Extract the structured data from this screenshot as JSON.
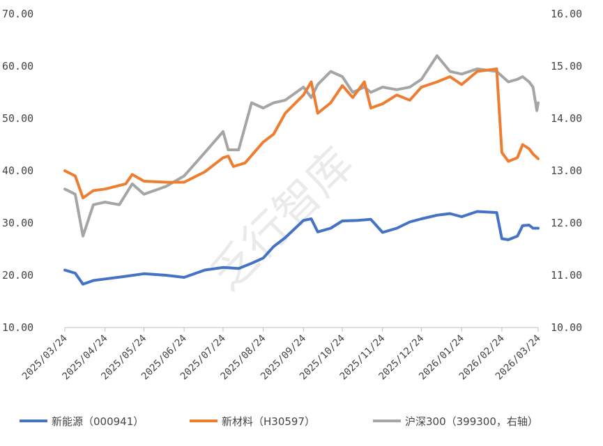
{
  "chart_data": {
    "type": "line",
    "watermark": "乏行智库",
    "x_ticks": [
      "2025/03/24",
      "2025/04/24",
      "2025/05/24",
      "2025/06/24",
      "2025/07/24",
      "2025/08/24",
      "2025/09/24",
      "2025/10/24",
      "2025/11/24",
      "2025/12/24",
      "2026/01/24",
      "2026/02/24",
      "2026/03/24"
    ],
    "y_left": {
      "range": [
        10,
        70
      ],
      "ticks": [
        "10.00",
        "20.00",
        "30.00",
        "40.00",
        "50.00",
        "60.00",
        "70.00"
      ]
    },
    "y_right": {
      "range": [
        10,
        16
      ],
      "ticks": [
        "10.00",
        "11.00",
        "12.00",
        "13.00",
        "14.00",
        "15.00",
        "16.00"
      ]
    },
    "legend_position": "bottom",
    "series": [
      {
        "name": "新能源（000941）",
        "axis": "left",
        "color": "#4472C4",
        "points": [
          [
            "2025/03/24",
            21.0
          ],
          [
            "2025/04/01",
            20.4
          ],
          [
            "2025/04/07",
            18.3
          ],
          [
            "2025/04/15",
            19.0
          ],
          [
            "2025/04/24",
            19.3
          ],
          [
            "2025/05/10",
            19.8
          ],
          [
            "2025/05/24",
            20.3
          ],
          [
            "2025/06/10",
            20.0
          ],
          [
            "2025/06/24",
            19.6
          ],
          [
            "2025/07/10",
            21.0
          ],
          [
            "2025/07/24",
            21.5
          ],
          [
            "2025/08/05",
            21.3
          ],
          [
            "2025/08/15",
            22.3
          ],
          [
            "2025/08/24",
            23.3
          ],
          [
            "2025/09/01",
            25.5
          ],
          [
            "2025/09/10",
            27.2
          ],
          [
            "2025/09/24",
            30.5
          ],
          [
            "2025/09/30",
            30.8
          ],
          [
            "2025/10/05",
            28.3
          ],
          [
            "2025/10/15",
            29.0
          ],
          [
            "2025/10/24",
            30.4
          ],
          [
            "2025/11/05",
            30.5
          ],
          [
            "2025/11/15",
            30.7
          ],
          [
            "2025/11/24",
            28.2
          ],
          [
            "2025/12/05",
            29.0
          ],
          [
            "2025/12/15",
            30.2
          ],
          [
            "2025/12/24",
            30.8
          ],
          [
            "2026/01/05",
            31.5
          ],
          [
            "2026/01/15",
            31.8
          ],
          [
            "2026/01/24",
            31.2
          ],
          [
            "2026/02/05",
            32.2
          ],
          [
            "2026/02/20",
            32.0
          ],
          [
            "2026/02/24",
            27.0
          ],
          [
            "2026/03/01",
            26.8
          ],
          [
            "2026/03/08",
            27.5
          ],
          [
            "2026/03/12",
            29.5
          ],
          [
            "2026/03/17",
            29.6
          ],
          [
            "2026/03/20",
            29.0
          ],
          [
            "2026/03/24",
            29.0
          ]
        ]
      },
      {
        "name": "新材料（H30597）",
        "axis": "left",
        "color": "#ED7D31",
        "points": [
          [
            "2025/03/24",
            40.0
          ],
          [
            "2025/04/01",
            39.0
          ],
          [
            "2025/04/07",
            34.8
          ],
          [
            "2025/04/15",
            36.2
          ],
          [
            "2025/04/24",
            36.5
          ],
          [
            "2025/05/10",
            37.5
          ],
          [
            "2025/05/15",
            39.3
          ],
          [
            "2025/05/24",
            38.0
          ],
          [
            "2025/06/10",
            37.8
          ],
          [
            "2025/06/24",
            37.8
          ],
          [
            "2025/07/10",
            39.8
          ],
          [
            "2025/07/24",
            42.5
          ],
          [
            "2025/07/28",
            42.8
          ],
          [
            "2025/08/01",
            40.8
          ],
          [
            "2025/08/10",
            41.5
          ],
          [
            "2025/08/24",
            45.5
          ],
          [
            "2025/09/01",
            47.0
          ],
          [
            "2025/09/10",
            51.0
          ],
          [
            "2025/09/24",
            54.5
          ],
          [
            "2025/09/30",
            57.0
          ],
          [
            "2025/10/05",
            51.0
          ],
          [
            "2025/10/15",
            53.0
          ],
          [
            "2025/10/24",
            56.3
          ],
          [
            "2025/11/01",
            54.0
          ],
          [
            "2025/11/10",
            57.0
          ],
          [
            "2025/11/15",
            52.0
          ],
          [
            "2025/11/24",
            52.8
          ],
          [
            "2025/12/05",
            54.5
          ],
          [
            "2025/12/15",
            53.5
          ],
          [
            "2025/12/24",
            56.0
          ],
          [
            "2026/01/05",
            57.0
          ],
          [
            "2026/01/15",
            58.0
          ],
          [
            "2026/01/24",
            56.5
          ],
          [
            "2026/02/05",
            59.0
          ],
          [
            "2026/02/20",
            59.5
          ],
          [
            "2026/02/24",
            43.5
          ],
          [
            "2026/03/01",
            41.8
          ],
          [
            "2026/03/08",
            42.5
          ],
          [
            "2026/03/12",
            45.0
          ],
          [
            "2026/03/17",
            44.2
          ],
          [
            "2026/03/20",
            43.2
          ],
          [
            "2026/03/24",
            42.3
          ]
        ]
      },
      {
        "name": "沪深300（399300，右轴）",
        "axis": "right",
        "color": "#A5A5A5",
        "points": [
          [
            "2025/03/24",
            12.65
          ],
          [
            "2025/04/01",
            12.55
          ],
          [
            "2025/04/07",
            11.75
          ],
          [
            "2025/04/15",
            12.35
          ],
          [
            "2025/04/24",
            12.4
          ],
          [
            "2025/05/05",
            12.35
          ],
          [
            "2025/05/15",
            12.75
          ],
          [
            "2025/05/24",
            12.55
          ],
          [
            "2025/06/10",
            12.7
          ],
          [
            "2025/06/24",
            12.9
          ],
          [
            "2025/07/10",
            13.35
          ],
          [
            "2025/07/24",
            13.75
          ],
          [
            "2025/07/28",
            13.4
          ],
          [
            "2025/08/05",
            13.4
          ],
          [
            "2025/08/15",
            14.3
          ],
          [
            "2025/08/24",
            14.2
          ],
          [
            "2025/09/01",
            14.3
          ],
          [
            "2025/09/10",
            14.35
          ],
          [
            "2025/09/24",
            14.6
          ],
          [
            "2025/09/30",
            14.4
          ],
          [
            "2025/10/05",
            14.65
          ],
          [
            "2025/10/15",
            14.9
          ],
          [
            "2025/10/24",
            14.8
          ],
          [
            "2025/11/01",
            14.5
          ],
          [
            "2025/11/10",
            14.6
          ],
          [
            "2025/11/15",
            14.5
          ],
          [
            "2025/11/24",
            14.6
          ],
          [
            "2025/12/05",
            14.55
          ],
          [
            "2025/12/15",
            14.6
          ],
          [
            "2025/12/24",
            14.75
          ],
          [
            "2026/01/05",
            15.2
          ],
          [
            "2026/01/15",
            14.9
          ],
          [
            "2026/01/24",
            14.85
          ],
          [
            "2026/02/05",
            14.95
          ],
          [
            "2026/02/20",
            14.9
          ],
          [
            "2026/03/01",
            14.7
          ],
          [
            "2026/03/08",
            14.75
          ],
          [
            "2026/03/12",
            14.8
          ],
          [
            "2026/03/17",
            14.7
          ],
          [
            "2026/03/20",
            14.6
          ],
          [
            "2026/03/23",
            14.15
          ],
          [
            "2026/03/24",
            14.3
          ]
        ]
      }
    ]
  }
}
